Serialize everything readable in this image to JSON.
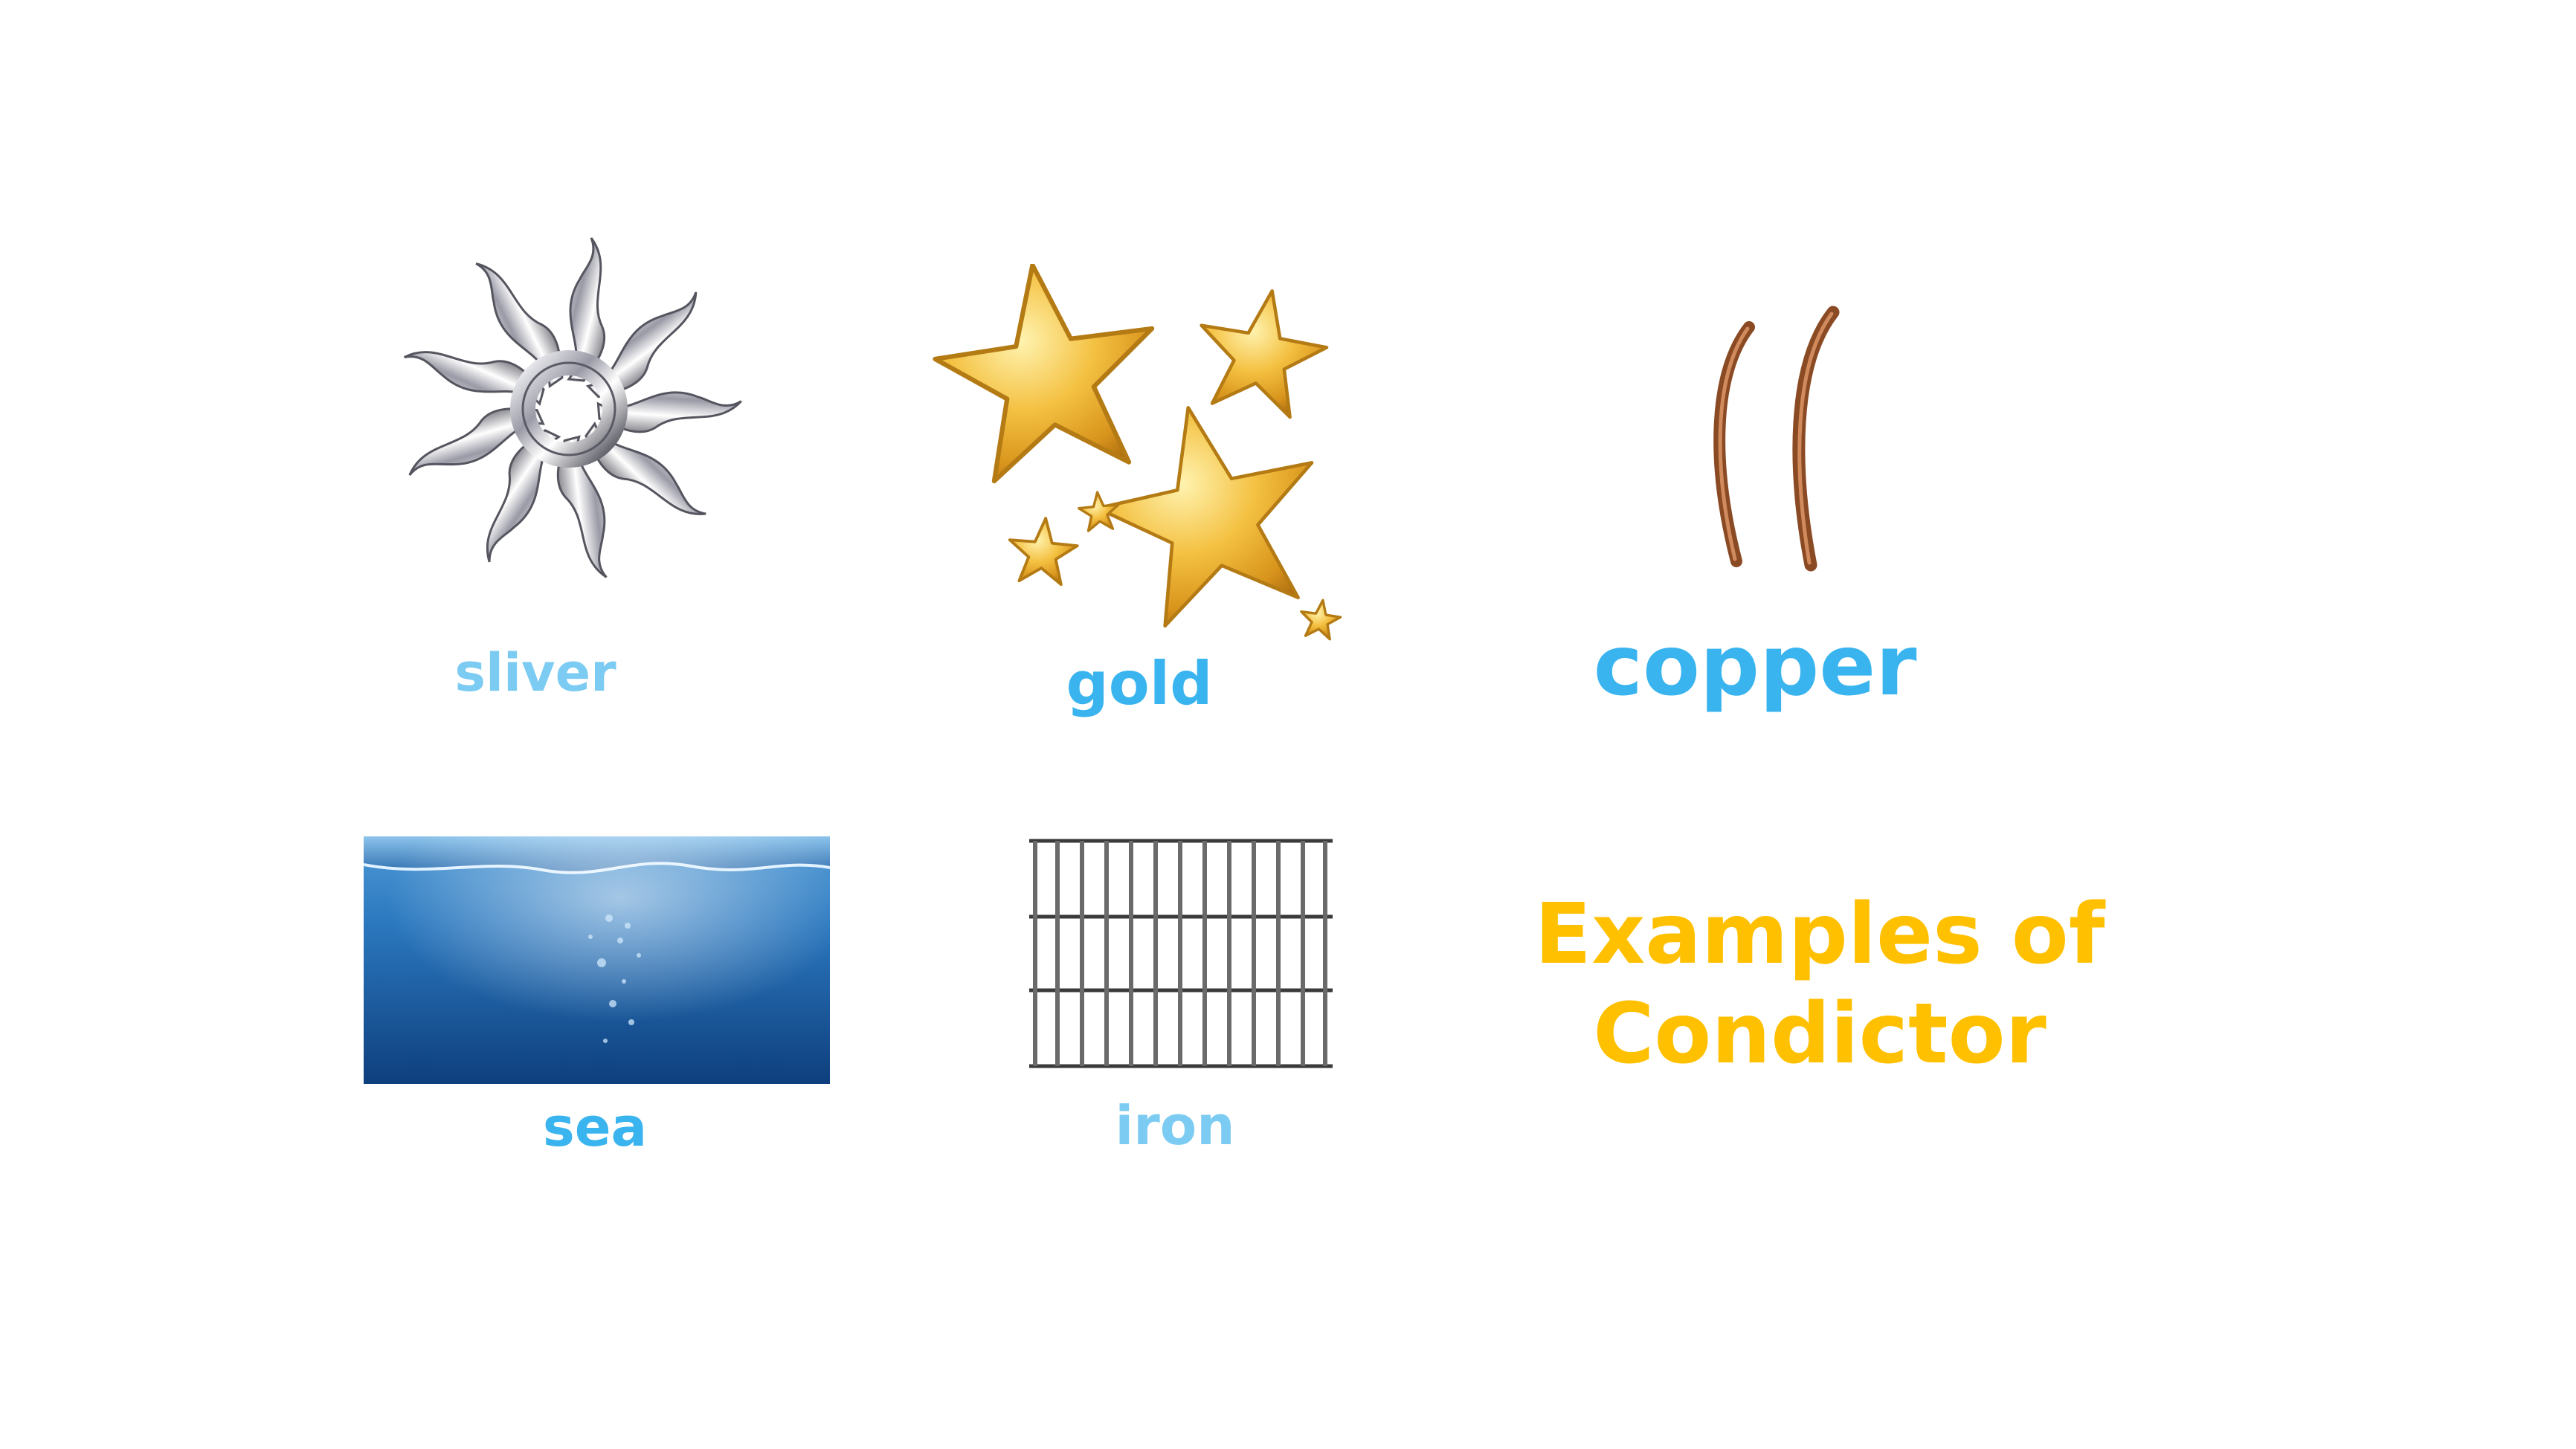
{
  "title": {
    "line1": "Examples of",
    "line2": "Condictor",
    "color": "#ffc000"
  },
  "items": [
    {
      "label": "sliver",
      "icon": "silver-sun-ornament",
      "color": "#7ccbf2"
    },
    {
      "label": "gold",
      "icon": "gold-stars",
      "color": "#3ab4ef"
    },
    {
      "label": "copper",
      "icon": "copper-wire",
      "color": "#3ab4ef"
    },
    {
      "label": "sea",
      "icon": "sea-water",
      "color": "#3ab4ef"
    },
    {
      "label": "iron",
      "icon": "iron-grid",
      "color": "#7ccbf2"
    }
  ]
}
